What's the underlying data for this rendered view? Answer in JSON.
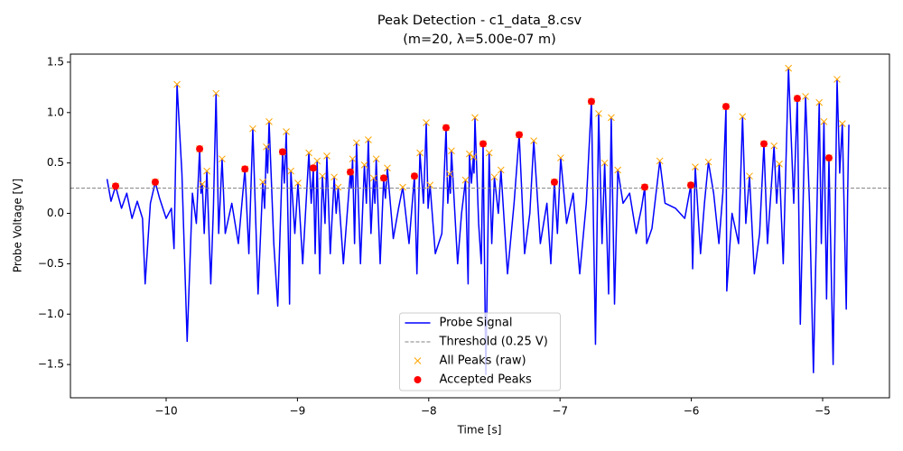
{
  "chart_data": {
    "type": "line",
    "title": "Peak Detection - c1_data_8.csv",
    "subtitle": "(m=20, λ=5.00e-07 m)",
    "x_label": "Time [s]",
    "y_label": "Probe Voltage [V]",
    "xlim": [
      -10.729,
      -4.491
    ],
    "ylim": [
      -1.83,
      1.58
    ],
    "xticks": [
      {
        "value": -10,
        "label": "−10"
      },
      {
        "value": -9,
        "label": "−9"
      },
      {
        "value": -8,
        "label": "−8"
      },
      {
        "value": -7,
        "label": "−7"
      },
      {
        "value": -6,
        "label": "−6"
      },
      {
        "value": -5,
        "label": "−5"
      }
    ],
    "yticks": [
      {
        "value": -1.5,
        "label": "−1.5"
      },
      {
        "value": -1.0,
        "label": "−1.0"
      },
      {
        "value": -0.5,
        "label": "−0.5"
      },
      {
        "value": 0.0,
        "label": "0.0"
      },
      0.5,
      {
        "value": 1.0,
        "label": "1.0"
      },
      1.5
    ],
    "legend": "lower center",
    "series": [
      {
        "name": "Probe Signal",
        "kind": "line",
        "color": "#0000ff",
        "x": [
          -10.45,
          -10.42,
          -10.385,
          -10.34,
          -10.3,
          -10.26,
          -10.22,
          -10.18,
          -10.16,
          -10.12,
          -10.083,
          -10.05,
          -10.0,
          -9.96,
          -9.94,
          -9.917,
          -9.88,
          -9.84,
          -9.8,
          -9.77,
          -9.745,
          -9.735,
          -9.725,
          -9.71,
          -9.69,
          -9.66,
          -9.64,
          -9.62,
          -9.6,
          -9.574,
          -9.55,
          -9.5,
          -9.45,
          -9.4,
          -9.37,
          -9.34,
          -9.3,
          -9.264,
          -9.25,
          -9.237,
          -9.227,
          -9.216,
          -9.18,
          -9.15,
          -9.113,
          -9.1,
          -9.085,
          -9.06,
          -9.05,
          -9.02,
          -8.996,
          -8.96,
          -8.913,
          -8.895,
          -8.879,
          -8.865,
          -8.85,
          -8.83,
          -8.81,
          -8.79,
          -8.776,
          -8.75,
          -8.72,
          -8.705,
          -8.69,
          -8.65,
          -8.597,
          -8.59,
          -8.58,
          -8.565,
          -8.55,
          -8.52,
          -8.49,
          -8.475,
          -8.46,
          -8.44,
          -8.42,
          -8.41,
          -8.4,
          -8.37,
          -8.343,
          -8.33,
          -8.315,
          -8.27,
          -8.23,
          -8.198,
          -8.15,
          -8.109,
          -8.09,
          -8.067,
          -8.04,
          -8.019,
          -8.005,
          -7.99,
          -7.95,
          -7.9,
          -7.868,
          -7.855,
          -7.84,
          -7.835,
          -7.827,
          -7.78,
          -7.75,
          -7.72,
          -7.7,
          -7.69,
          -7.675,
          -7.66,
          -7.655,
          -7.648,
          -7.62,
          -7.6,
          -7.586,
          -7.565,
          -7.54,
          -7.52,
          -7.5,
          -7.47,
          -7.45,
          -7.4,
          -7.35,
          -7.311,
          -7.27,
          -7.23,
          -7.2,
          -7.15,
          -7.1,
          -7.07,
          -7.043,
          -7.02,
          -6.995,
          -6.95,
          -6.9,
          -6.85,
          -6.8,
          -6.761,
          -6.73,
          -6.706,
          -6.68,
          -6.66,
          -6.63,
          -6.61,
          -6.585,
          -6.56,
          -6.52,
          -6.47,
          -6.42,
          -6.38,
          -6.355,
          -6.34,
          -6.3,
          -6.24,
          -6.2,
          -6.12,
          -6.05,
          -6.004,
          -5.99,
          -5.97,
          -5.93,
          -5.9,
          -5.87,
          -5.83,
          -5.79,
          -5.76,
          -5.736,
          -5.73,
          -5.69,
          -5.64,
          -5.61,
          -5.585,
          -5.557,
          -5.52,
          -5.48,
          -5.447,
          -5.42,
          -5.37,
          -5.35,
          -5.33,
          -5.3,
          -5.26,
          -5.22,
          -5.193,
          -5.17,
          -5.13,
          -5.1,
          -5.07,
          -5.026,
          -5.01,
          -4.99,
          -4.97,
          -4.952,
          -4.92,
          -4.89,
          -4.87,
          -4.85,
          -4.82,
          -4.81,
          -4.8
        ],
        "values": [
          0.34,
          0.12,
          0.27,
          0.05,
          0.2,
          -0.05,
          0.12,
          -0.05,
          -0.7,
          0.1,
          0.31,
          0.15,
          -0.05,
          0.05,
          -0.35,
          1.28,
          0.4,
          -1.27,
          0.2,
          -0.1,
          0.64,
          0.2,
          0.29,
          -0.2,
          0.42,
          -0.7,
          0.05,
          1.19,
          -0.2,
          0.54,
          -0.2,
          0.1,
          -0.3,
          0.44,
          -0.4,
          0.84,
          -0.8,
          0.31,
          0.05,
          0.66,
          0.4,
          0.91,
          -0.3,
          -0.92,
          0.61,
          0.3,
          0.81,
          -0.9,
          0.42,
          -0.2,
          0.3,
          -0.5,
          0.6,
          0.1,
          0.45,
          -0.4,
          0.52,
          -0.6,
          0.37,
          -0.1,
          0.57,
          -0.4,
          0.36,
          0.0,
          0.26,
          -0.5,
          0.41,
          0.25,
          0.54,
          -0.3,
          0.7,
          -0.5,
          0.48,
          0.1,
          0.73,
          -0.2,
          0.35,
          0.1,
          0.54,
          -0.5,
          0.35,
          0.15,
          0.45,
          -0.25,
          0.05,
          0.26,
          -0.3,
          0.37,
          -0.6,
          0.6,
          0.1,
          0.9,
          0.05,
          0.28,
          -0.4,
          -0.2,
          0.85,
          0.1,
          0.39,
          0.2,
          0.62,
          -0.5,
          0.0,
          0.33,
          -0.7,
          0.59,
          0.3,
          0.56,
          0.4,
          0.95,
          -0.1,
          -0.5,
          0.69,
          -1.6,
          0.6,
          -0.3,
          0.36,
          0.0,
          0.43,
          -0.6,
          0.1,
          0.78,
          -0.4,
          0.0,
          0.72,
          -0.3,
          0.1,
          -0.5,
          0.31,
          -0.2,
          0.55,
          -0.1,
          0.2,
          -0.6,
          0.1,
          1.11,
          -1.3,
          0.99,
          -0.3,
          0.5,
          -0.8,
          0.95,
          -0.9,
          0.43,
          0.1,
          0.2,
          -0.2,
          0.05,
          0.26,
          -0.3,
          -0.15,
          0.52,
          0.1,
          0.05,
          -0.05,
          0.28,
          -0.55,
          0.46,
          -0.4,
          0.1,
          0.51,
          0.2,
          -0.3,
          0.2,
          1.06,
          -0.77,
          0.0,
          -0.3,
          0.96,
          -0.1,
          0.37,
          -0.6,
          -0.2,
          0.69,
          -0.3,
          0.67,
          0.1,
          0.49,
          -0.5,
          1.44,
          0.1,
          1.14,
          -1.1,
          1.16,
          0.1,
          -1.58,
          1.1,
          -0.3,
          0.91,
          -0.85,
          0.55,
          -1.5,
          1.33,
          0.4,
          0.89,
          -0.95,
          0.15,
          0.88
        ]
      },
      {
        "name": "Threshold (0.25 V)",
        "kind": "hline",
        "color": "#808080",
        "value": 0.25
      },
      {
        "name": "All Peaks (raw)",
        "kind": "x-marker",
        "color": "#ffa500",
        "x": [
          -10.385,
          -10.083,
          -9.917,
          -9.745,
          -9.725,
          -9.69,
          -9.62,
          -9.574,
          -9.4,
          -9.34,
          -9.264,
          -9.237,
          -9.216,
          -9.113,
          -9.085,
          -9.05,
          -8.996,
          -8.913,
          -8.879,
          -8.85,
          -8.81,
          -8.776,
          -8.72,
          -8.69,
          -8.597,
          -8.58,
          -8.55,
          -8.49,
          -8.46,
          -8.42,
          -8.4,
          -8.343,
          -8.315,
          -8.198,
          -8.109,
          -8.067,
          -8.019,
          -7.99,
          -7.868,
          -7.84,
          -7.827,
          -7.72,
          -7.69,
          -7.66,
          -7.648,
          -7.586,
          -7.54,
          -7.5,
          -7.45,
          -7.311,
          -7.2,
          -7.043,
          -6.995,
          -6.761,
          -6.706,
          -6.66,
          -6.61,
          -6.56,
          -6.355,
          -6.24,
          -6.004,
          -5.97,
          -5.87,
          -5.736,
          -5.61,
          -5.557,
          -5.447,
          -5.37,
          -5.33,
          -5.26,
          -5.193,
          -5.13,
          -5.026,
          -4.99,
          -4.952,
          -4.89,
          -4.85
        ],
        "values": [
          0.27,
          0.31,
          1.28,
          0.64,
          0.29,
          0.42,
          1.19,
          0.54,
          0.44,
          0.84,
          0.31,
          0.66,
          0.91,
          0.61,
          0.81,
          0.42,
          0.3,
          0.6,
          0.45,
          0.52,
          0.37,
          0.57,
          0.36,
          0.26,
          0.41,
          0.54,
          0.7,
          0.48,
          0.73,
          0.35,
          0.54,
          0.35,
          0.45,
          0.26,
          0.37,
          0.6,
          0.9,
          0.28,
          0.85,
          0.39,
          0.62,
          0.33,
          0.59,
          0.56,
          0.95,
          0.69,
          0.6,
          0.36,
          0.43,
          0.78,
          0.72,
          0.31,
          0.55,
          1.11,
          0.99,
          0.5,
          0.95,
          0.43,
          0.26,
          0.52,
          0.28,
          0.46,
          0.51,
          1.06,
          0.96,
          0.37,
          0.69,
          0.67,
          0.49,
          1.44,
          1.14,
          1.16,
          1.1,
          0.91,
          0.55,
          1.33,
          0.89
        ]
      },
      {
        "name": "Accepted Peaks",
        "kind": "dot",
        "color": "#ff0000",
        "x": [
          -10.385,
          -10.083,
          -9.745,
          -9.4,
          -9.113,
          -8.879,
          -8.597,
          -8.343,
          -8.109,
          -7.868,
          -7.586,
          -7.311,
          -7.043,
          -6.761,
          -6.355,
          -6.004,
          -5.736,
          -5.447,
          -5.193,
          -4.952
        ],
        "values": [
          0.27,
          0.31,
          0.64,
          0.44,
          0.61,
          0.45,
          0.41,
          0.35,
          0.37,
          0.85,
          0.69,
          0.78,
          0.31,
          1.11,
          0.26,
          0.28,
          1.06,
          0.69,
          1.14,
          0.55
        ]
      }
    ]
  }
}
